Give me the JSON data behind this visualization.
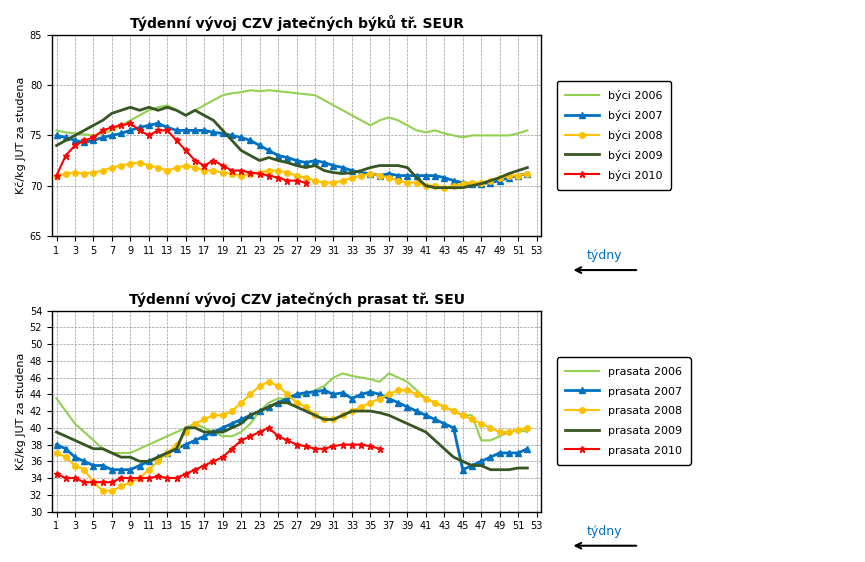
{
  "chart1": {
    "title": "Týdenní vývoj CZV jatečných býků tř. SEUR",
    "ylabel": "Kč/kg JUT za studena",
    "xlabel_label": "týdny",
    "ylim": [
      65,
      85
    ],
    "yticks": [
      65,
      70,
      75,
      80,
      85
    ],
    "xticks": [
      1,
      3,
      5,
      7,
      9,
      11,
      13,
      15,
      17,
      19,
      21,
      23,
      25,
      27,
      29,
      31,
      33,
      35,
      37,
      39,
      41,
      43,
      45,
      47,
      49,
      51,
      53
    ],
    "series": {
      "býci 2006": {
        "color": "#92D050",
        "linewidth": 1.5,
        "marker": null,
        "values": [
          75.5,
          75.3,
          75.2,
          75.1,
          75.0,
          75.2,
          75.5,
          76.0,
          76.5,
          77.0,
          77.5,
          77.8,
          78.0,
          77.5,
          77.0,
          77.5,
          78.0,
          78.5,
          79.0,
          79.2,
          79.3,
          79.5,
          79.4,
          79.5,
          79.4,
          79.3,
          79.2,
          79.1,
          79.0,
          78.5,
          78.0,
          77.5,
          77.0,
          76.5,
          76.0,
          76.5,
          76.8,
          76.5,
          76.0,
          75.5,
          75.3,
          75.5,
          75.2,
          75.0,
          74.8,
          75.0,
          75.0,
          75.0,
          75.0,
          75.0,
          75.2,
          75.5
        ]
      },
      "býci 2007": {
        "color": "#0070C0",
        "linewidth": 2.0,
        "marker": "^",
        "markersize": 4,
        "values": [
          75.0,
          74.8,
          74.5,
          74.3,
          74.5,
          74.8,
          75.0,
          75.2,
          75.5,
          75.8,
          76.0,
          76.2,
          75.8,
          75.5,
          75.5,
          75.5,
          75.5,
          75.3,
          75.2,
          75.0,
          74.8,
          74.5,
          74.0,
          73.5,
          73.0,
          72.8,
          72.5,
          72.3,
          72.5,
          72.3,
          72.0,
          71.8,
          71.5,
          71.3,
          71.2,
          71.0,
          71.2,
          71.0,
          71.0,
          71.0,
          71.0,
          71.0,
          70.8,
          70.5,
          70.3,
          70.2,
          70.2,
          70.3,
          70.5,
          70.8,
          71.0,
          71.2
        ]
      },
      "býci 2008": {
        "color": "#FFC000",
        "linewidth": 1.5,
        "marker": "o",
        "markersize": 4,
        "values": [
          71.0,
          71.2,
          71.3,
          71.2,
          71.3,
          71.5,
          71.8,
          72.0,
          72.2,
          72.3,
          72.0,
          71.8,
          71.5,
          71.8,
          72.0,
          71.8,
          71.5,
          71.5,
          71.3,
          71.2,
          71.0,
          71.2,
          71.3,
          71.5,
          71.5,
          71.3,
          71.0,
          70.8,
          70.5,
          70.3,
          70.3,
          70.5,
          70.8,
          71.0,
          71.2,
          71.0,
          70.8,
          70.5,
          70.3,
          70.3,
          70.0,
          70.0,
          69.8,
          70.0,
          70.2,
          70.3,
          70.3,
          70.5,
          70.8,
          71.0,
          71.0,
          71.2
        ]
      },
      "býci 2009": {
        "color": "#375623",
        "linewidth": 2.0,
        "marker": null,
        "values": [
          74.0,
          74.5,
          75.0,
          75.5,
          76.0,
          76.5,
          77.2,
          77.5,
          77.8,
          77.5,
          77.8,
          77.5,
          77.8,
          77.5,
          77.0,
          77.5,
          77.0,
          76.5,
          75.5,
          74.5,
          73.5,
          73.0,
          72.5,
          72.8,
          72.5,
          72.3,
          72.0,
          71.8,
          72.0,
          71.5,
          71.3,
          71.2,
          71.3,
          71.5,
          71.8,
          72.0,
          72.0,
          72.0,
          71.8,
          70.8,
          70.0,
          69.8,
          69.8,
          69.8,
          69.8,
          70.0,
          70.2,
          70.5,
          70.8,
          71.2,
          71.5,
          71.8
        ]
      },
      "býci 2010": {
        "color": "#FF0000",
        "linewidth": 1.5,
        "marker": "*",
        "markersize": 5,
        "values": [
          71.0,
          73.0,
          74.0,
          74.5,
          74.8,
          75.5,
          75.8,
          76.0,
          76.2,
          75.5,
          75.0,
          75.5,
          75.5,
          74.5,
          73.5,
          72.5,
          72.0,
          72.5,
          72.0,
          71.5,
          71.5,
          71.3,
          71.2,
          71.0,
          70.8,
          70.5,
          70.5,
          70.3,
          null,
          null,
          null,
          null,
          null,
          null,
          null,
          null,
          null,
          null,
          null,
          null,
          null,
          null,
          null,
          null,
          null,
          null,
          null,
          null,
          null,
          null,
          null,
          null
        ]
      }
    }
  },
  "chart2": {
    "title": "Týdenní vývoj CZV jatečných prasat tř. SEU",
    "ylabel": "Kč/kg JUT za studena",
    "xlabel_label": "týdny",
    "ylim": [
      30,
      54
    ],
    "yticks": [
      30,
      32,
      34,
      36,
      38,
      40,
      42,
      44,
      46,
      48,
      50,
      52,
      54
    ],
    "xticks": [
      1,
      3,
      5,
      7,
      9,
      11,
      13,
      15,
      17,
      19,
      21,
      23,
      25,
      27,
      29,
      31,
      33,
      35,
      37,
      39,
      41,
      43,
      45,
      47,
      49,
      51,
      53
    ],
    "series": {
      "prasata 2006": {
        "color": "#92D050",
        "linewidth": 1.5,
        "marker": null,
        "values": [
          43.5,
          42.0,
          40.5,
          39.5,
          38.5,
          37.5,
          37.0,
          37.0,
          37.0,
          37.5,
          38.0,
          38.5,
          39.0,
          39.5,
          40.0,
          40.5,
          40.0,
          39.5,
          39.0,
          39.0,
          39.5,
          40.5,
          42.0,
          43.0,
          43.5,
          43.5,
          43.8,
          44.0,
          44.5,
          45.0,
          46.0,
          46.5,
          46.2,
          46.0,
          45.8,
          45.5,
          46.5,
          46.0,
          45.5,
          44.5,
          43.5,
          43.0,
          42.5,
          42.0,
          41.5,
          41.5,
          38.5,
          38.5,
          39.0,
          39.5,
          39.8,
          39.5
        ]
      },
      "prasata 2007": {
        "color": "#0070C0",
        "linewidth": 2.0,
        "marker": "^",
        "markersize": 4,
        "values": [
          38.0,
          37.5,
          36.5,
          36.0,
          35.5,
          35.5,
          35.0,
          35.0,
          35.0,
          35.5,
          36.0,
          36.5,
          37.0,
          37.5,
          38.0,
          38.5,
          39.0,
          39.5,
          40.0,
          40.5,
          41.0,
          41.5,
          42.0,
          42.5,
          43.0,
          43.5,
          44.0,
          44.2,
          44.3,
          44.5,
          44.0,
          44.2,
          43.5,
          44.0,
          44.3,
          44.0,
          43.5,
          43.0,
          42.5,
          42.0,
          41.5,
          41.0,
          40.5,
          40.0,
          35.0,
          35.5,
          36.0,
          36.5,
          37.0,
          37.0,
          37.0,
          37.5
        ]
      },
      "prasata 2008": {
        "color": "#FFC000",
        "linewidth": 1.5,
        "marker": "o",
        "markersize": 4,
        "values": [
          37.0,
          36.5,
          35.5,
          35.0,
          33.5,
          32.5,
          32.5,
          33.0,
          33.5,
          34.0,
          35.0,
          36.0,
          37.0,
          38.0,
          39.5,
          40.5,
          41.0,
          41.5,
          41.5,
          42.0,
          43.0,
          44.0,
          45.0,
          45.5,
          45.0,
          44.0,
          43.0,
          42.5,
          41.5,
          41.0,
          41.0,
          41.5,
          42.0,
          42.5,
          43.0,
          43.5,
          44.0,
          44.5,
          44.5,
          44.0,
          43.5,
          43.0,
          42.5,
          42.0,
          41.5,
          41.0,
          40.5,
          40.0,
          39.5,
          39.5,
          39.8,
          40.0
        ]
      },
      "prasata 2009": {
        "color": "#375623",
        "linewidth": 2.0,
        "marker": null,
        "values": [
          39.5,
          39.0,
          38.5,
          38.0,
          37.5,
          37.5,
          37.0,
          36.5,
          36.5,
          36.0,
          36.0,
          36.5,
          37.0,
          37.5,
          40.0,
          40.0,
          39.5,
          39.5,
          39.5,
          40.0,
          40.5,
          41.5,
          42.0,
          42.5,
          43.0,
          43.0,
          42.5,
          42.0,
          41.5,
          41.0,
          41.0,
          41.5,
          42.0,
          42.0,
          42.0,
          41.8,
          41.5,
          41.0,
          40.5,
          40.0,
          39.5,
          38.5,
          37.5,
          36.5,
          36.0,
          35.5,
          35.5,
          35.0,
          35.0,
          35.0,
          35.2,
          35.2
        ]
      },
      "prasata 2010": {
        "color": "#FF0000",
        "linewidth": 1.5,
        "marker": "*",
        "markersize": 5,
        "values": [
          34.5,
          34.0,
          34.0,
          33.5,
          33.5,
          33.5,
          33.5,
          34.0,
          34.0,
          34.0,
          34.0,
          34.2,
          34.0,
          34.0,
          34.5,
          35.0,
          35.5,
          36.0,
          36.5,
          37.5,
          38.5,
          39.0,
          39.5,
          40.0,
          39.0,
          38.5,
          38.0,
          37.8,
          37.5,
          37.5,
          37.8,
          38.0,
          38.0,
          38.0,
          37.8,
          37.5,
          null,
          null,
          null,
          null,
          null,
          null,
          null,
          null,
          null,
          null,
          null,
          null,
          null,
          null,
          null,
          null
        ]
      }
    }
  },
  "background_color": "#FFFFFF",
  "grid_color": "#999999",
  "outer_border_color": "#000000"
}
